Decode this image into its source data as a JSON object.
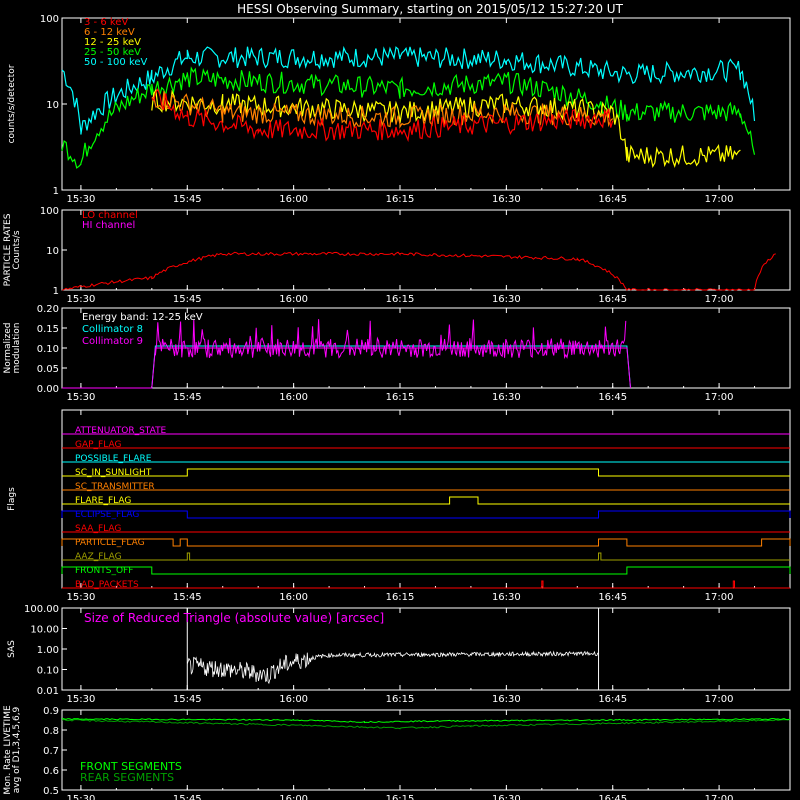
{
  "title": "HESSI Observing Summary, starting on 2015/05/12 15:27:20 UT",
  "x_tick_labels": [
    "15:30",
    "15:45",
    "16:00",
    "16:15",
    "16:30",
    "16:45",
    "17:00"
  ],
  "colors": {
    "red": "#ff0000",
    "orange": "#ff8000",
    "yellow": "#ffff00",
    "green": "#00ff00",
    "cyan": "#00ffff",
    "magenta": "#ff00ff",
    "blue": "#0000ff",
    "white": "#ffffff",
    "olive": "#a0a000",
    "dark_green": "#00a000"
  },
  "chart_data": [
    {
      "type": "line",
      "panel": "count-rates",
      "ylabel": "counts/s/detector",
      "yscale": "log",
      "ylim": [
        1,
        100
      ],
      "y_tick_labels": [
        "1",
        "10",
        "100"
      ],
      "x_range": [
        "15:27:20",
        "17:10"
      ],
      "series": [
        {
          "name": "3 - 6 keV",
          "color": "red",
          "values_summary": [
            {
              "t": "15:40",
              "v": 12
            },
            {
              "t": "15:45",
              "v": 7
            },
            {
              "t": "15:55",
              "v": 5
            },
            {
              "t": "16:15",
              "v": 5
            },
            {
              "t": "16:30",
              "v": 6
            },
            {
              "t": "16:45",
              "v": 7
            }
          ]
        },
        {
          "name": "6 - 12 keV",
          "color": "orange",
          "values_summary": [
            {
              "t": "15:40",
              "v": 12
            },
            {
              "t": "15:50",
              "v": 8
            },
            {
              "t": "16:15",
              "v": 7
            },
            {
              "t": "16:30",
              "v": 8
            },
            {
              "t": "16:45",
              "v": 7
            }
          ]
        },
        {
          "name": "12 - 25 keV",
          "color": "yellow",
          "values_summary": [
            {
              "t": "15:40",
              "v": 11
            },
            {
              "t": "15:50",
              "v": 10
            },
            {
              "t": "16:15",
              "v": 8
            },
            {
              "t": "16:30",
              "v": 10
            },
            {
              "t": "16:45",
              "v": 8
            },
            {
              "t": "16:47",
              "v": 2.5
            },
            {
              "t": "17:03",
              "v": 2.5
            }
          ]
        },
        {
          "name": "25 - 50 keV",
          "color": "green",
          "values_summary": [
            {
              "t": "15:27:20",
              "v": 3.5
            },
            {
              "t": "15:30",
              "v": 2
            },
            {
              "t": "15:40",
              "v": 15
            },
            {
              "t": "15:45",
              "v": 20
            },
            {
              "t": "16:15",
              "v": 15
            },
            {
              "t": "16:30",
              "v": 18
            },
            {
              "t": "16:47",
              "v": 8
            },
            {
              "t": "17:03",
              "v": 8
            },
            {
              "t": "17:05",
              "v": 2
            }
          ]
        },
        {
          "name": "50 - 100 keV",
          "color": "cyan",
          "values_summary": [
            {
              "t": "15:27:20",
              "v": 25
            },
            {
              "t": "15:30",
              "v": 5
            },
            {
              "t": "15:40",
              "v": 20
            },
            {
              "t": "15:45",
              "v": 35
            },
            {
              "t": "16:15",
              "v": 35
            },
            {
              "t": "16:30",
              "v": 33
            },
            {
              "t": "16:47",
              "v": 22
            },
            {
              "t": "17:03",
              "v": 25
            },
            {
              "t": "17:05",
              "v": 6
            }
          ]
        }
      ]
    },
    {
      "type": "line",
      "panel": "particle-rates",
      "ylabel": "PARTICLE RATES Counts/s",
      "yscale": "log",
      "ylim": [
        1,
        100
      ],
      "y_tick_labels": [
        "1",
        "10",
        "100"
      ],
      "series": [
        {
          "name": "LO channel",
          "color": "red",
          "values_summary": [
            {
              "t": "15:27:20",
              "v": 1
            },
            {
              "t": "15:40",
              "v": 2
            },
            {
              "t": "15:45",
              "v": 5
            },
            {
              "t": "15:50",
              "v": 8
            },
            {
              "t": "16:15",
              "v": 8
            },
            {
              "t": "16:40",
              "v": 6
            },
            {
              "t": "16:47",
              "v": 1
            },
            {
              "t": "17:05",
              "v": 1
            },
            {
              "t": "17:08",
              "v": 8
            }
          ]
        },
        {
          "name": "HI channel",
          "color": "magenta",
          "values_summary": []
        }
      ]
    },
    {
      "type": "line",
      "panel": "modulation",
      "ylabel": "Normalized modulation",
      "ylim": [
        0.0,
        0.2
      ],
      "y_tick_labels": [
        "0.00",
        "0.05",
        "0.10",
        "0.15",
        "0.20"
      ],
      "annotation": "Energy band: 12-25 keV",
      "series": [
        {
          "name": "Collimator 8",
          "color": "cyan",
          "values_summary": [
            {
              "t": "15:27:20",
              "v": 0.0
            },
            {
              "t": "15:40",
              "v": 0.0
            },
            {
              "t": "15:40:30",
              "v": 0.105
            },
            {
              "t": "16:47",
              "v": 0.105
            },
            {
              "t": "16:47:30",
              "v": 0.0
            }
          ]
        },
        {
          "name": "Collimator 9",
          "color": "magenta",
          "values_summary": [
            {
              "t": "15:27:20",
              "v": 0.0
            },
            {
              "t": "15:40",
              "v": 0.0
            },
            {
              "t": "15:40:30",
              "v": 0.1
            },
            {
              "t": "16:47",
              "v": 0.1
            },
            {
              "t": "16:47:30",
              "v": 0.0
            }
          ]
        }
      ]
    },
    {
      "type": "line",
      "panel": "flags",
      "ylabel": "Flags",
      "series": [
        {
          "name": "ATTENUATOR_STATE",
          "color": "magenta",
          "on_intervals": []
        },
        {
          "name": "GAP_FLAG",
          "color": "red",
          "on_intervals": []
        },
        {
          "name": "POSSIBLE_FLARE",
          "color": "cyan",
          "on_intervals": []
        },
        {
          "name": "SC_IN_SUNLIGHT",
          "color": "yellow",
          "on_intervals": [
            [
              "15:45",
              "16:43"
            ]
          ]
        },
        {
          "name": "SC_TRANSMITTER",
          "color": "orange",
          "on_intervals": []
        },
        {
          "name": "FLARE_FLAG",
          "color": "yellow",
          "on_intervals": [
            [
              "16:22",
              "16:26"
            ]
          ]
        },
        {
          "name": "ECLIPSE_FLAG",
          "color": "blue",
          "on_intervals": [
            [
              "15:27:20",
              "15:45"
            ],
            [
              "16:43",
              "17:10"
            ]
          ]
        },
        {
          "name": "SAA_FLAG",
          "color": "red",
          "on_intervals": []
        },
        {
          "name": "PARTICLE_FLAG",
          "color": "orange",
          "on_intervals": [
            [
              "15:27:20",
              "15:43"
            ],
            [
              "15:44",
              "15:45"
            ],
            [
              "16:43",
              "16:47"
            ],
            [
              "17:06",
              "17:10"
            ]
          ]
        },
        {
          "name": "AAZ_FLAG",
          "color": "olive",
          "on_intervals": [
            [
              "15:45",
              "15:45:20"
            ],
            [
              "16:43",
              "16:43:20"
            ]
          ]
        },
        {
          "name": "FRONTS_OFF",
          "color": "green",
          "on_intervals": [
            [
              "15:27:20",
              "15:40"
            ],
            [
              "16:47",
              "17:10"
            ]
          ]
        },
        {
          "name": "BAD_PACKETS",
          "color": "red",
          "on_intervals": [
            [
              "16:35",
              "16:35:10"
            ],
            [
              "17:02",
              "17:02:10"
            ]
          ]
        }
      ]
    },
    {
      "type": "line",
      "panel": "sas",
      "ylabel": "SAS",
      "yscale": "log",
      "ylim": [
        0.01,
        100
      ],
      "y_tick_labels": [
        "0.01",
        "0.10",
        "1.00",
        "10.00",
        "100.00"
      ],
      "annotation": "Size of Reduced Triangle (absolute value) [arcsec]",
      "series": [
        {
          "name": "",
          "color": "white",
          "values_summary": [
            {
              "t": "15:45",
              "v": 100
            },
            {
              "t": "15:46",
              "v": 0.2
            },
            {
              "t": "15:55",
              "v": 0.08
            },
            {
              "t": "16:00",
              "v": 0.07
            },
            {
              "t": "16:05",
              "v": 0.3
            },
            {
              "t": "16:10",
              "v": 0.5
            },
            {
              "t": "16:43",
              "v": 0.6
            },
            {
              "t": "16:43:30",
              "v": 100
            }
          ]
        }
      ]
    },
    {
      "type": "line",
      "panel": "livetime",
      "ylabel": "Mon. Rate LIVETIME avg of D1,3,4,5,6,9",
      "ylim": [
        0.5,
        0.9
      ],
      "y_tick_labels": [
        "0.5",
        "0.6",
        "0.7",
        "0.8",
        "0.9"
      ],
      "series": [
        {
          "name": "FRONT SEGMENTS",
          "color": "green",
          "values_summary": [
            {
              "t": "15:27:20",
              "v": 0.855
            },
            {
              "t": "16:00",
              "v": 0.85
            },
            {
              "t": "16:10",
              "v": 0.84
            },
            {
              "t": "16:20",
              "v": 0.845
            },
            {
              "t": "17:10",
              "v": 0.855
            }
          ]
        },
        {
          "name": "REAR SEGMENTS",
          "color": "dark_green",
          "values_summary": [
            {
              "t": "15:27:20",
              "v": 0.85
            },
            {
              "t": "16:05",
              "v": 0.82
            },
            {
              "t": "16:15",
              "v": 0.81
            },
            {
              "t": "16:25",
              "v": 0.82
            },
            {
              "t": "17:10",
              "v": 0.85
            }
          ]
        }
      ]
    }
  ]
}
